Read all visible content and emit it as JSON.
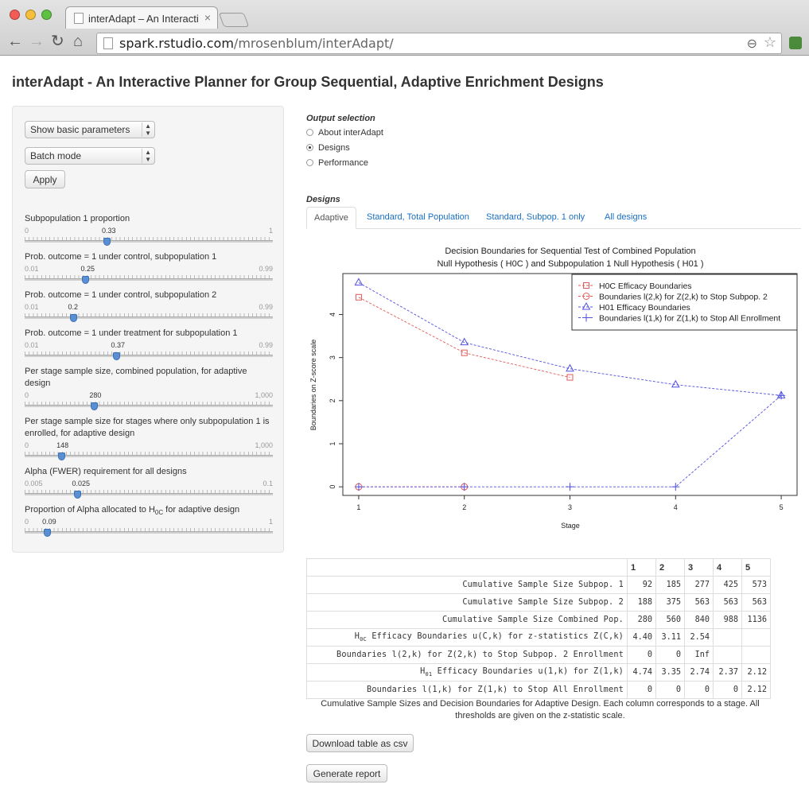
{
  "browser": {
    "tab_title": "interAdapt – An Interactive",
    "url_host": "spark.rstudio.com",
    "url_path": "/mrosenblum/interAdapt/",
    "close_glyph": "×",
    "back_glyph": "←",
    "forward_glyph": "→",
    "reload_glyph": "↻",
    "home_glyph": "⌂",
    "zoom_glyph": "⊖",
    "star_glyph": "☆"
  },
  "page": {
    "title": "interAdapt - An Interactive Planner for Group Sequential, Adaptive Enrichment Designs"
  },
  "sidebar": {
    "param_select": "Show basic parameters",
    "mode_select": "Batch mode",
    "apply_label": "Apply",
    "sliders": [
      {
        "label": "Subpopulation 1 proportion",
        "min": "0",
        "max": "1",
        "value": "0.33",
        "fraction": 0.33
      },
      {
        "label": "Prob. outcome = 1 under control, subpopulation 1",
        "min": "0.01",
        "max": "0.99",
        "value": "0.25",
        "fraction": 0.245
      },
      {
        "label": "Prob. outcome = 1 under control, subpopulation 2",
        "min": "0.01",
        "max": "0.99",
        "value": "0.2",
        "fraction": 0.194
      },
      {
        "label": "Prob. outcome = 1 under treatment for subpopulation 1",
        "min": "0.01",
        "max": "0.99",
        "value": "0.37",
        "fraction": 0.367
      },
      {
        "label": "Per stage sample size, combined population, for adaptive design",
        "min": "0",
        "max": "1,000",
        "value": "280",
        "fraction": 0.28
      },
      {
        "label": "Per stage sample size for stages where only subpopulation 1 is enrolled, for adaptive design",
        "min": "0",
        "max": "1,000",
        "value": "148",
        "fraction": 0.148
      },
      {
        "label": "Alpha (FWER) requirement for all designs",
        "min": "0.005",
        "max": "0.1",
        "value": "0.025",
        "fraction": 0.21
      },
      {
        "label_prefix": "Proportion of Alpha allocated to H",
        "label_sub": "0C",
        "label_suffix": " for adaptive design",
        "min": "0",
        "max": "1",
        "value": "0.09",
        "fraction": 0.09
      }
    ]
  },
  "output": {
    "header": "Output selection",
    "options": [
      "About interAdapt",
      "Designs",
      "Performance"
    ],
    "selected": "Designs"
  },
  "designs": {
    "header": "Designs",
    "tabs": [
      "Adaptive",
      "Standard, Total Population",
      "Standard, Subpop. 1 only",
      "All designs"
    ],
    "active_tab": "Adaptive"
  },
  "chart_data": {
    "type": "line",
    "title_line1": "Decision Boundaries for Sequential Test of Combined Population",
    "title_line2": "Null Hypothesis ( H0C ) and Subpopulation 1 Null Hypothesis ( H01 )",
    "xlabel": "Stage",
    "ylabel": "Boundaries on Z-score scale",
    "xlim": [
      1,
      5
    ],
    "ylim": [
      0,
      4.74
    ],
    "x_ticks": [
      1,
      2,
      3,
      4,
      5
    ],
    "y_ticks": [
      0,
      1,
      2,
      3,
      4
    ],
    "legend_position": "top-right",
    "series": [
      {
        "name": "H0C Efficacy Boundaries",
        "color": "#e05a5a",
        "marker": "square",
        "x": [
          1,
          2,
          3
        ],
        "values": [
          4.4,
          3.11,
          2.54
        ]
      },
      {
        "name": "Boundaries l(2,k) for Z(2,k) to Stop Subpop. 2",
        "color": "#e05a5a",
        "marker": "circle",
        "x": [
          1,
          2
        ],
        "values": [
          0,
          0
        ]
      },
      {
        "name": "H01 Efficacy Boundaries",
        "color": "#5050e0",
        "marker": "triangle",
        "x": [
          1,
          2,
          3,
          4,
          5
        ],
        "values": [
          4.74,
          3.35,
          2.74,
          2.37,
          2.12
        ]
      },
      {
        "name": "Boundaries l(1,k) for Z(1,k) to Stop All Enrollment",
        "color": "#5050e0",
        "marker": "plus",
        "x": [
          1,
          2,
          3,
          4,
          5
        ],
        "values": [
          0,
          0,
          0,
          0,
          2.12
        ]
      }
    ]
  },
  "table": {
    "columns": [
      "1",
      "2",
      "3",
      "4",
      "5"
    ],
    "rows": [
      {
        "label": "Cumulative Sample Size Subpop. 1",
        "cells": [
          "92",
          "185",
          "277",
          "425",
          "573"
        ]
      },
      {
        "label": "Cumulative Sample Size Subpop. 2",
        "cells": [
          "188",
          "375",
          "563",
          "563",
          "563"
        ]
      },
      {
        "label": "Cumulative Sample Size Combined Pop.",
        "cells": [
          "280",
          "560",
          "840",
          "988",
          "1136"
        ]
      },
      {
        "label_prefix": "H",
        "label_sub": "0C",
        "label_suffix": " Efficacy Boundaries u(C,k) for z-statistics Z(C,k)",
        "cells": [
          "4.40",
          "3.11",
          "2.54",
          "",
          ""
        ]
      },
      {
        "label": "Boundaries l(2,k) for Z(2,k) to Stop Subpop. 2 Enrollment",
        "cells": [
          "0",
          "0",
          "Inf",
          "",
          ""
        ]
      },
      {
        "label_prefix": "H",
        "label_sub": "01",
        "label_suffix": " Efficacy Boundaries u(1,k) for Z(1,k)",
        "cells": [
          "4.74",
          "3.35",
          "2.74",
          "2.37",
          "2.12"
        ]
      },
      {
        "label": "Boundaries l(1,k) for Z(1,k) to Stop All Enrollment",
        "cells": [
          "0",
          "0",
          "0",
          "0",
          "2.12"
        ]
      }
    ],
    "caption": "Cumulative Sample Sizes and Decision Boundaries for Adaptive Design. Each column corresponds to a stage. All thresholds are given on the z-statistic scale."
  },
  "buttons": {
    "download": "Download table as csv",
    "report": "Generate report"
  }
}
